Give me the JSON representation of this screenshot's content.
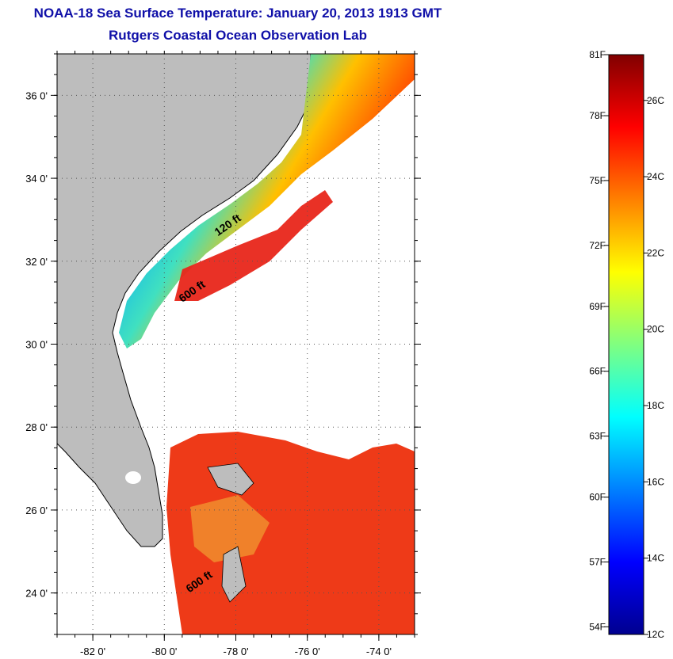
{
  "title": "NOAA-18 Sea Surface Temperature:  January 20, 2013 1913 GMT",
  "subtitle": "Rutgers Coastal Ocean Observation Lab",
  "map": {
    "lon_range": [
      -83,
      -73
    ],
    "lat_range": [
      23,
      37
    ],
    "lon_ticks": [
      {
        "value": -82,
        "label": "-82 0'"
      },
      {
        "value": -80,
        "label": "-80 0'"
      },
      {
        "value": -78,
        "label": "-78 0'"
      },
      {
        "value": -76,
        "label": "-76 0'"
      },
      {
        "value": -74,
        "label": "-74 0'"
      }
    ],
    "lat_ticks": [
      {
        "value": 36,
        "label": "36 0'"
      },
      {
        "value": 34,
        "label": "34 0'"
      },
      {
        "value": 32,
        "label": "32 0'"
      },
      {
        "value": 30,
        "label": "30 0'"
      },
      {
        "value": 28,
        "label": "28 0'"
      },
      {
        "value": 26,
        "label": "26 0'"
      },
      {
        "value": 24,
        "label": "24 0'"
      }
    ],
    "contour_labels": [
      {
        "text": "120 ft",
        "lon": -78.5,
        "lat": 32.6
      },
      {
        "text": "600 ft",
        "lon": -79.5,
        "lat": 31.0
      },
      {
        "text": "600 ft",
        "lon": -79.3,
        "lat": 24.0
      }
    ],
    "land_color": "#bdbdbd",
    "cloud_color": "#ffffff"
  },
  "colorbar": {
    "min_c": 12,
    "max_c": 27.2,
    "fahrenheit_labels": [
      {
        "label": "81F",
        "value_c": 27.2
      },
      {
        "label": "78F",
        "value_c": 25.6
      },
      {
        "label": "75F",
        "value_c": 23.9
      },
      {
        "label": "72F",
        "value_c": 22.2
      },
      {
        "label": "69F",
        "value_c": 20.6
      },
      {
        "label": "66F",
        "value_c": 18.9
      },
      {
        "label": "63F",
        "value_c": 17.2
      },
      {
        "label": "60F",
        "value_c": 15.6
      },
      {
        "label": "57F",
        "value_c": 13.9
      },
      {
        "label": "54F",
        "value_c": 12.2
      }
    ],
    "celsius_labels": [
      {
        "label": "26C",
        "value_c": 26
      },
      {
        "label": "24C",
        "value_c": 24
      },
      {
        "label": "22C",
        "value_c": 22
      },
      {
        "label": "20C",
        "value_c": 20
      },
      {
        "label": "18C",
        "value_c": 18
      },
      {
        "label": "16C",
        "value_c": 16
      },
      {
        "label": "14C",
        "value_c": 14
      },
      {
        "label": "12C",
        "value_c": 12
      }
    ],
    "colors": [
      "#00008f",
      "#0000ff",
      "#0080ff",
      "#00ffff",
      "#80ff80",
      "#ffff00",
      "#ff8000",
      "#ff0000",
      "#800000"
    ]
  }
}
